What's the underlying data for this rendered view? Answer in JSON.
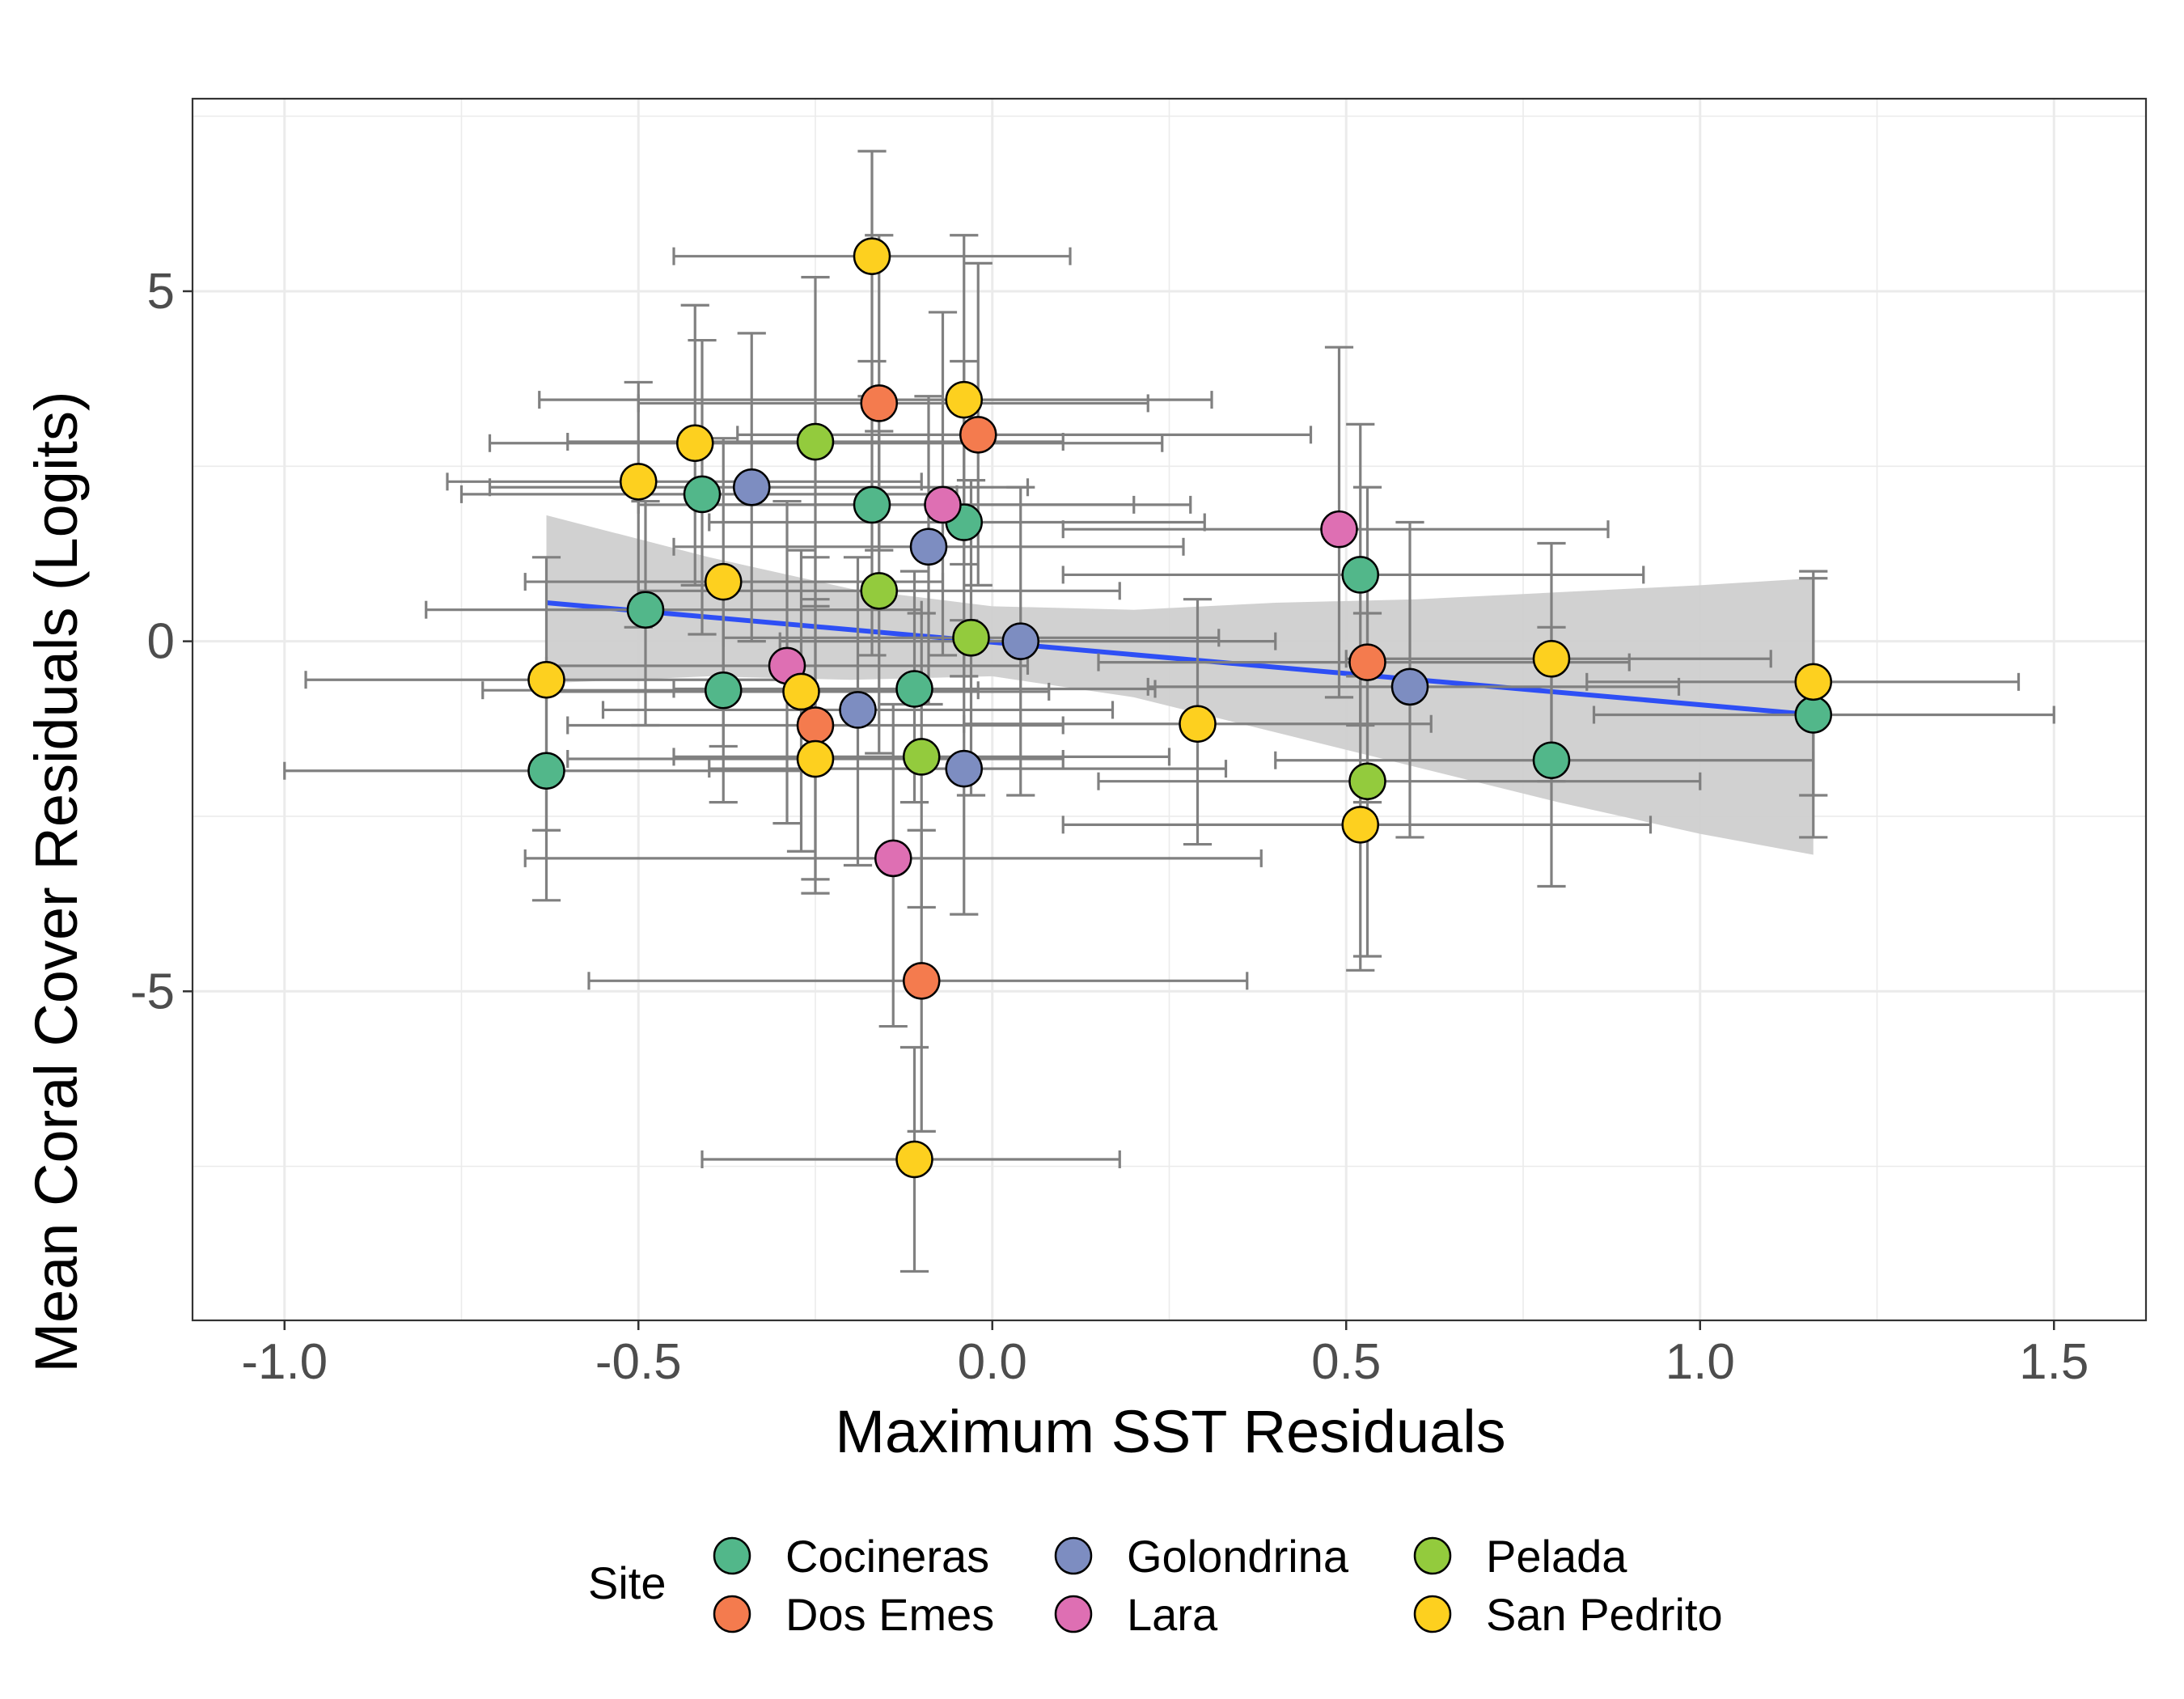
{
  "chart_data": {
    "type": "scatter",
    "xlabel": "Maximum SST Residuals",
    "ylabel": "Mean Coral Cover Residuals (Logits)",
    "xlim": [
      -1.13,
      1.63
    ],
    "ylim": [
      -9.7,
      7.75
    ],
    "x_ticks": [
      -1.0,
      -0.5,
      0.0,
      0.5,
      1.0,
      1.5
    ],
    "x_tick_labels": [
      "-1.0",
      "-0.5",
      "0.0",
      "0.5",
      "1.0",
      "1.5"
    ],
    "y_ticks": [
      -5,
      0,
      5
    ],
    "y_tick_labels": [
      "-5",
      "0",
      "5"
    ],
    "grid": true,
    "legend": {
      "title": "Site",
      "position": "bottom",
      "entries": [
        "Cocineras",
        "Dos Emes",
        "Golondrina",
        "Lara",
        "Pelada",
        "San Pedrito"
      ]
    },
    "colors": {
      "Cocineras": "#52b78a",
      "Dos Emes": "#f47b4e",
      "Golondrina": "#7d8dc1",
      "Lara": "#de6fb3",
      "Pelada": "#93cb3d",
      "San Pedrito": "#fdd01f",
      "errorbar": "#808080",
      "trend": "#2e4ff5",
      "ribbon": "#cfcfcf"
    },
    "trend": {
      "x": [
        -0.63,
        1.16
      ],
      "y": [
        0.55,
        -1.05
      ]
    },
    "ribbon": {
      "x": [
        -0.63,
        -0.4,
        -0.2,
        0.0,
        0.2,
        0.4,
        0.6,
        0.8,
        1.0,
        1.16
      ],
      "upper": [
        1.8,
        1.2,
        0.75,
        0.5,
        0.45,
        0.55,
        0.6,
        0.7,
        0.8,
        0.9
      ],
      "lower": [
        -0.6,
        -0.5,
        -0.55,
        -0.5,
        -0.8,
        -1.3,
        -1.8,
        -2.3,
        -2.75,
        -3.05
      ]
    },
    "series": [
      {
        "name": "Cocineras",
        "points": [
          {
            "x": -0.63,
            "y": -1.85,
            "xmin": -1.0,
            "xmax": -0.25,
            "ymin": -3.7,
            "ymax": -0.55
          },
          {
            "x": -0.49,
            "y": 0.45,
            "xmin": -0.8,
            "xmax": -0.1,
            "ymin": -1.2,
            "ymax": 2.0
          },
          {
            "x": -0.41,
            "y": 2.1,
            "xmin": -0.75,
            "xmax": -0.05,
            "ymin": 0.1,
            "ymax": 4.3
          },
          {
            "x": -0.38,
            "y": -0.7,
            "xmin": -0.72,
            "xmax": -0.02,
            "ymin": -2.3,
            "ymax": 1.0
          },
          {
            "x": -0.17,
            "y": 1.95,
            "xmin": -0.5,
            "xmax": 0.2,
            "ymin": -0.2,
            "ymax": 4.0
          },
          {
            "x": -0.11,
            "y": -0.68,
            "xmin": -0.45,
            "xmax": 0.23,
            "ymin": -2.3,
            "ymax": 1.0
          },
          {
            "x": -0.04,
            "y": 1.7,
            "xmin": -0.4,
            "xmax": 0.3,
            "ymin": -0.5,
            "ymax": 4.0
          },
          {
            "x": 0.52,
            "y": 0.95,
            "xmin": 0.1,
            "xmax": 0.92,
            "ymin": -1.2,
            "ymax": 3.1
          },
          {
            "x": 0.79,
            "y": -1.7,
            "xmin": 0.4,
            "xmax": 1.16,
            "ymin": -3.5,
            "ymax": 0.2
          },
          {
            "x": 1.16,
            "y": -1.05,
            "xmin": 0.85,
            "xmax": 1.5,
            "ymin": -2.8,
            "ymax": 0.9
          }
        ]
      },
      {
        "name": "Dos Emes",
        "points": [
          {
            "x": -0.16,
            "y": 3.4,
            "xmin": -0.5,
            "xmax": 0.22,
            "ymin": 1.3,
            "ymax": 5.8
          },
          {
            "x": -0.02,
            "y": 2.95,
            "xmin": -0.36,
            "xmax": 0.45,
            "ymin": 0.8,
            "ymax": 5.4
          },
          {
            "x": -0.25,
            "y": -1.2,
            "xmin": -0.6,
            "xmax": 0.1,
            "ymin": -3.6,
            "ymax": 1.2
          },
          {
            "x": -0.1,
            "y": -4.85,
            "xmin": -0.57,
            "xmax": 0.36,
            "ymin": -7.0,
            "ymax": -2.7
          },
          {
            "x": 0.53,
            "y": -0.3,
            "xmin": 0.15,
            "xmax": 0.9,
            "ymin": -2.3,
            "ymax": 2.2
          }
        ]
      },
      {
        "name": "Golondrina",
        "points": [
          {
            "x": -0.34,
            "y": 2.2,
            "xmin": -0.71,
            "xmax": 0.05,
            "ymin": 0.0,
            "ymax": 4.4
          },
          {
            "x": -0.09,
            "y": 1.35,
            "xmin": -0.45,
            "xmax": 0.27,
            "ymin": -0.9,
            "ymax": 3.5
          },
          {
            "x": 0.04,
            "y": 0.0,
            "xmin": -0.3,
            "xmax": 0.4,
            "ymin": -2.2,
            "ymax": 2.2
          },
          {
            "x": -0.19,
            "y": -0.98,
            "xmin": -0.55,
            "xmax": 0.17,
            "ymin": -3.2,
            "ymax": 1.2
          },
          {
            "x": -0.04,
            "y": -1.82,
            "xmin": -0.4,
            "xmax": 0.33,
            "ymin": -3.9,
            "ymax": 0.3
          },
          {
            "x": 0.59,
            "y": -0.65,
            "xmin": 0.22,
            "xmax": 0.97,
            "ymin": -2.8,
            "ymax": 1.7
          }
        ]
      },
      {
        "name": "Lara",
        "points": [
          {
            "x": -0.07,
            "y": 1.95,
            "xmin": -0.42,
            "xmax": 0.28,
            "ymin": -0.2,
            "ymax": 4.7
          },
          {
            "x": -0.29,
            "y": -0.35,
            "xmin": -0.63,
            "xmax": 0.05,
            "ymin": -2.6,
            "ymax": 2.0
          },
          {
            "x": -0.14,
            "y": -3.1,
            "xmin": -0.66,
            "xmax": 0.38,
            "ymin": -5.5,
            "ymax": -0.9
          },
          {
            "x": 0.49,
            "y": 1.6,
            "xmin": 0.1,
            "xmax": 0.87,
            "ymin": -0.8,
            "ymax": 4.2
          }
        ]
      },
      {
        "name": "Pelada",
        "points": [
          {
            "x": -0.25,
            "y": 2.85,
            "xmin": -0.6,
            "xmax": 0.1,
            "ymin": 0.5,
            "ymax": 5.2
          },
          {
            "x": -0.16,
            "y": 0.72,
            "xmin": -0.5,
            "xmax": 0.18,
            "ymin": -1.6,
            "ymax": 3.0
          },
          {
            "x": -0.03,
            "y": 0.05,
            "xmin": -0.38,
            "xmax": 0.32,
            "ymin": -2.2,
            "ymax": 2.3
          },
          {
            "x": -0.1,
            "y": -1.65,
            "xmin": -0.45,
            "xmax": 0.25,
            "ymin": -3.8,
            "ymax": 0.4
          },
          {
            "x": 0.53,
            "y": -2.0,
            "xmin": 0.15,
            "xmax": 1.0,
            "ymin": -4.5,
            "ymax": 0.4
          }
        ]
      },
      {
        "name": "San Pedrito",
        "points": [
          {
            "x": -0.17,
            "y": 5.5,
            "xmin": -0.45,
            "xmax": 0.11,
            "ymin": 3.5,
            "ymax": 7.0
          },
          {
            "x": -0.04,
            "y": 3.45,
            "xmin": -0.64,
            "xmax": 0.31,
            "ymin": 1.1,
            "ymax": 5.8
          },
          {
            "x": -0.42,
            "y": 2.83,
            "xmin": -0.71,
            "xmax": 0.24,
            "ymin": 0.8,
            "ymax": 4.8
          },
          {
            "x": -0.5,
            "y": 2.28,
            "xmin": -0.77,
            "xmax": -0.1,
            "ymin": 0.2,
            "ymax": 3.7
          },
          {
            "x": -0.38,
            "y": 0.85,
            "xmin": -0.66,
            "xmax": -0.07,
            "ymin": -1.5,
            "ymax": 2.9
          },
          {
            "x": -0.63,
            "y": -0.55,
            "xmin": -0.97,
            "xmax": -0.28,
            "ymin": -2.7,
            "ymax": 1.2
          },
          {
            "x": -0.27,
            "y": -0.72,
            "xmin": -0.63,
            "xmax": 0.08,
            "ymin": -3.0,
            "ymax": 1.3
          },
          {
            "x": -0.25,
            "y": -1.68,
            "xmin": -0.6,
            "xmax": 0.1,
            "ymin": -3.4,
            "ymax": 0.6
          },
          {
            "x": 0.29,
            "y": -1.18,
            "xmin": -0.04,
            "xmax": 0.62,
            "ymin": -2.9,
            "ymax": 0.6
          },
          {
            "x": -0.11,
            "y": -7.4,
            "xmin": -0.41,
            "xmax": 0.18,
            "ymin": -9.0,
            "ymax": -5.8
          },
          {
            "x": 0.52,
            "y": -2.62,
            "xmin": 0.1,
            "xmax": 0.93,
            "ymin": -4.7,
            "ymax": -0.5
          },
          {
            "x": 0.79,
            "y": -0.25,
            "xmin": 0.5,
            "xmax": 1.1,
            "ymin": -2.0,
            "ymax": 1.4
          },
          {
            "x": 1.16,
            "y": -0.58,
            "xmin": 0.84,
            "xmax": 1.45,
            "ymin": -2.2,
            "ymax": 1.0
          }
        ]
      }
    ]
  }
}
